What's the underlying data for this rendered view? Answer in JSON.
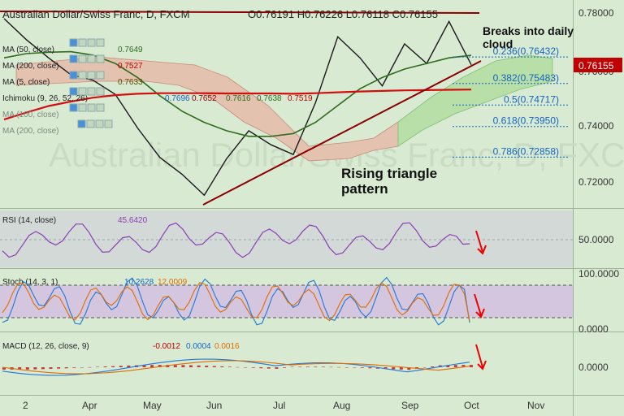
{
  "header": {
    "title": "Australian Dollar/Swiss Franc, D, FXCM",
    "ohlc": "O0.76191  H0.76226  L0.76118  C0.76155"
  },
  "legend": {
    "ma50": "MA (50, close)",
    "ma50_val": "0.7649",
    "ma200": "MA (200, close)",
    "ma200_val": "0.7527",
    "ma5": "MA (5, close)",
    "ma5_val": "0.7633",
    "ichimoku": "Ichimoku (9, 26, 52, 26)",
    "ichimoku_vals": [
      "0.7696",
      "0.7652",
      "0.7616",
      "0.7638",
      "0.7519"
    ],
    "extra1": "MA (100, close)",
    "extra2": "MA (200, close)"
  },
  "annotations": {
    "breaks": [
      "Breaks into daily",
      "cloud"
    ],
    "triangle": [
      "Rising triangle",
      "pattern"
    ]
  },
  "fib_levels": [
    {
      "label": "0.236(0.76432)",
      "value": 0.76432
    },
    {
      "label": "0.382(0.75483)",
      "value": 0.75483
    },
    {
      "label": "0.5(0.74717)",
      "value": 0.74717
    },
    {
      "label": "0.618(0.73950)",
      "value": 0.7395
    },
    {
      "label": "0.786(0.72858)",
      "value": 0.72858
    }
  ],
  "current_price": "0.76155",
  "price_axis": [
    "0.78000",
    "0.76000",
    "0.74000",
    "0.72000"
  ],
  "rsi": {
    "label": "RSI (14, close)",
    "value": "45.6420",
    "axis": "50.0000"
  },
  "stoch": {
    "label": "Stoch (14, 3, 1)",
    "k": "10.2628",
    "d": "12.0009",
    "axis_top": "100.0000",
    "axis_bot": "0.0000"
  },
  "macd": {
    "label": "MACD (12, 26, close, 9)",
    "hist": "-0.0012",
    "macd": "0.0004",
    "signal": "0.0016",
    "axis": "0.0000"
  },
  "x_labels": [
    "2",
    "Apr",
    "May",
    "Jun",
    "Jul",
    "Aug",
    "Sep",
    "Oct",
    "Nov"
  ],
  "colors": {
    "bg": "#d9ead3",
    "red": "#c00000",
    "green": "#3a7a22",
    "blue": "#1565c0",
    "purple": "#8a3fb5",
    "orange": "#e06c00"
  },
  "chart_data": {
    "type": "line",
    "instrument": "Australian Dollar/Swiss Franc, D, FXCM",
    "x": [
      "Mar 02",
      "Mar 10",
      "Mar 20",
      "Mar 31",
      "Apr 10",
      "Apr 20",
      "May 01",
      "May 10",
      "May 20",
      "May 31",
      "Jun 10",
      "Jun 20",
      "Jun 30",
      "Jul 10",
      "Jul 20",
      "Jul 31",
      "Aug 10",
      "Aug 20",
      "Aug 31",
      "Sep 10",
      "Sep 20",
      "Sep 30"
    ],
    "series": [
      {
        "name": "close",
        "values": [
          0.778,
          0.7705,
          0.764,
          0.758,
          0.756,
          0.751,
          0.739,
          0.7285,
          0.7225,
          0.715,
          0.728,
          0.738,
          0.733,
          0.7295,
          0.748,
          0.7715,
          0.764,
          0.754,
          0.769,
          0.762,
          0.777,
          0.76155
        ]
      },
      {
        "name": "MA (50, close)",
        "values": [
          0.764,
          0.7655,
          0.766,
          0.7662,
          0.765,
          0.762,
          0.757,
          0.7505,
          0.745,
          0.741,
          0.738,
          0.736,
          0.736,
          0.737,
          0.741,
          0.747,
          0.753,
          0.757,
          0.76,
          0.762,
          0.764,
          0.7649
        ]
      },
      {
        "name": "MA (200, close)",
        "values": [
          0.742,
          0.7445,
          0.7468,
          0.7484,
          0.7498,
          0.7507,
          0.7512,
          0.7514,
          0.7514,
          0.7514,
          0.7513,
          0.7513,
          0.7513,
          0.7512,
          0.7514,
          0.7517,
          0.752,
          0.7522,
          0.7524,
          0.7525,
          0.7526,
          0.7527
        ]
      }
    ],
    "ylim": [
      0.71,
      0.782
    ],
    "yticks": [
      0.72,
      0.74,
      0.76,
      0.78
    ],
    "resistance": 0.78,
    "trendline": {
      "x": [
        "May 31",
        "Sep 30"
      ],
      "y": [
        0.712,
        0.763
      ]
    },
    "rsi": {
      "name": "RSI (14, close)",
      "last": 45.642,
      "reference": 50
    },
    "stoch": {
      "name": "Stoch (14, 3, 1)",
      "k": 10.2628,
      "d": 12.0009,
      "range": [
        0,
        100
      ]
    },
    "macd": {
      "name": "MACD (12, 26, close, 9)",
      "histogram": -0.0012,
      "macd": 0.0004,
      "signal": 0.0016
    }
  }
}
